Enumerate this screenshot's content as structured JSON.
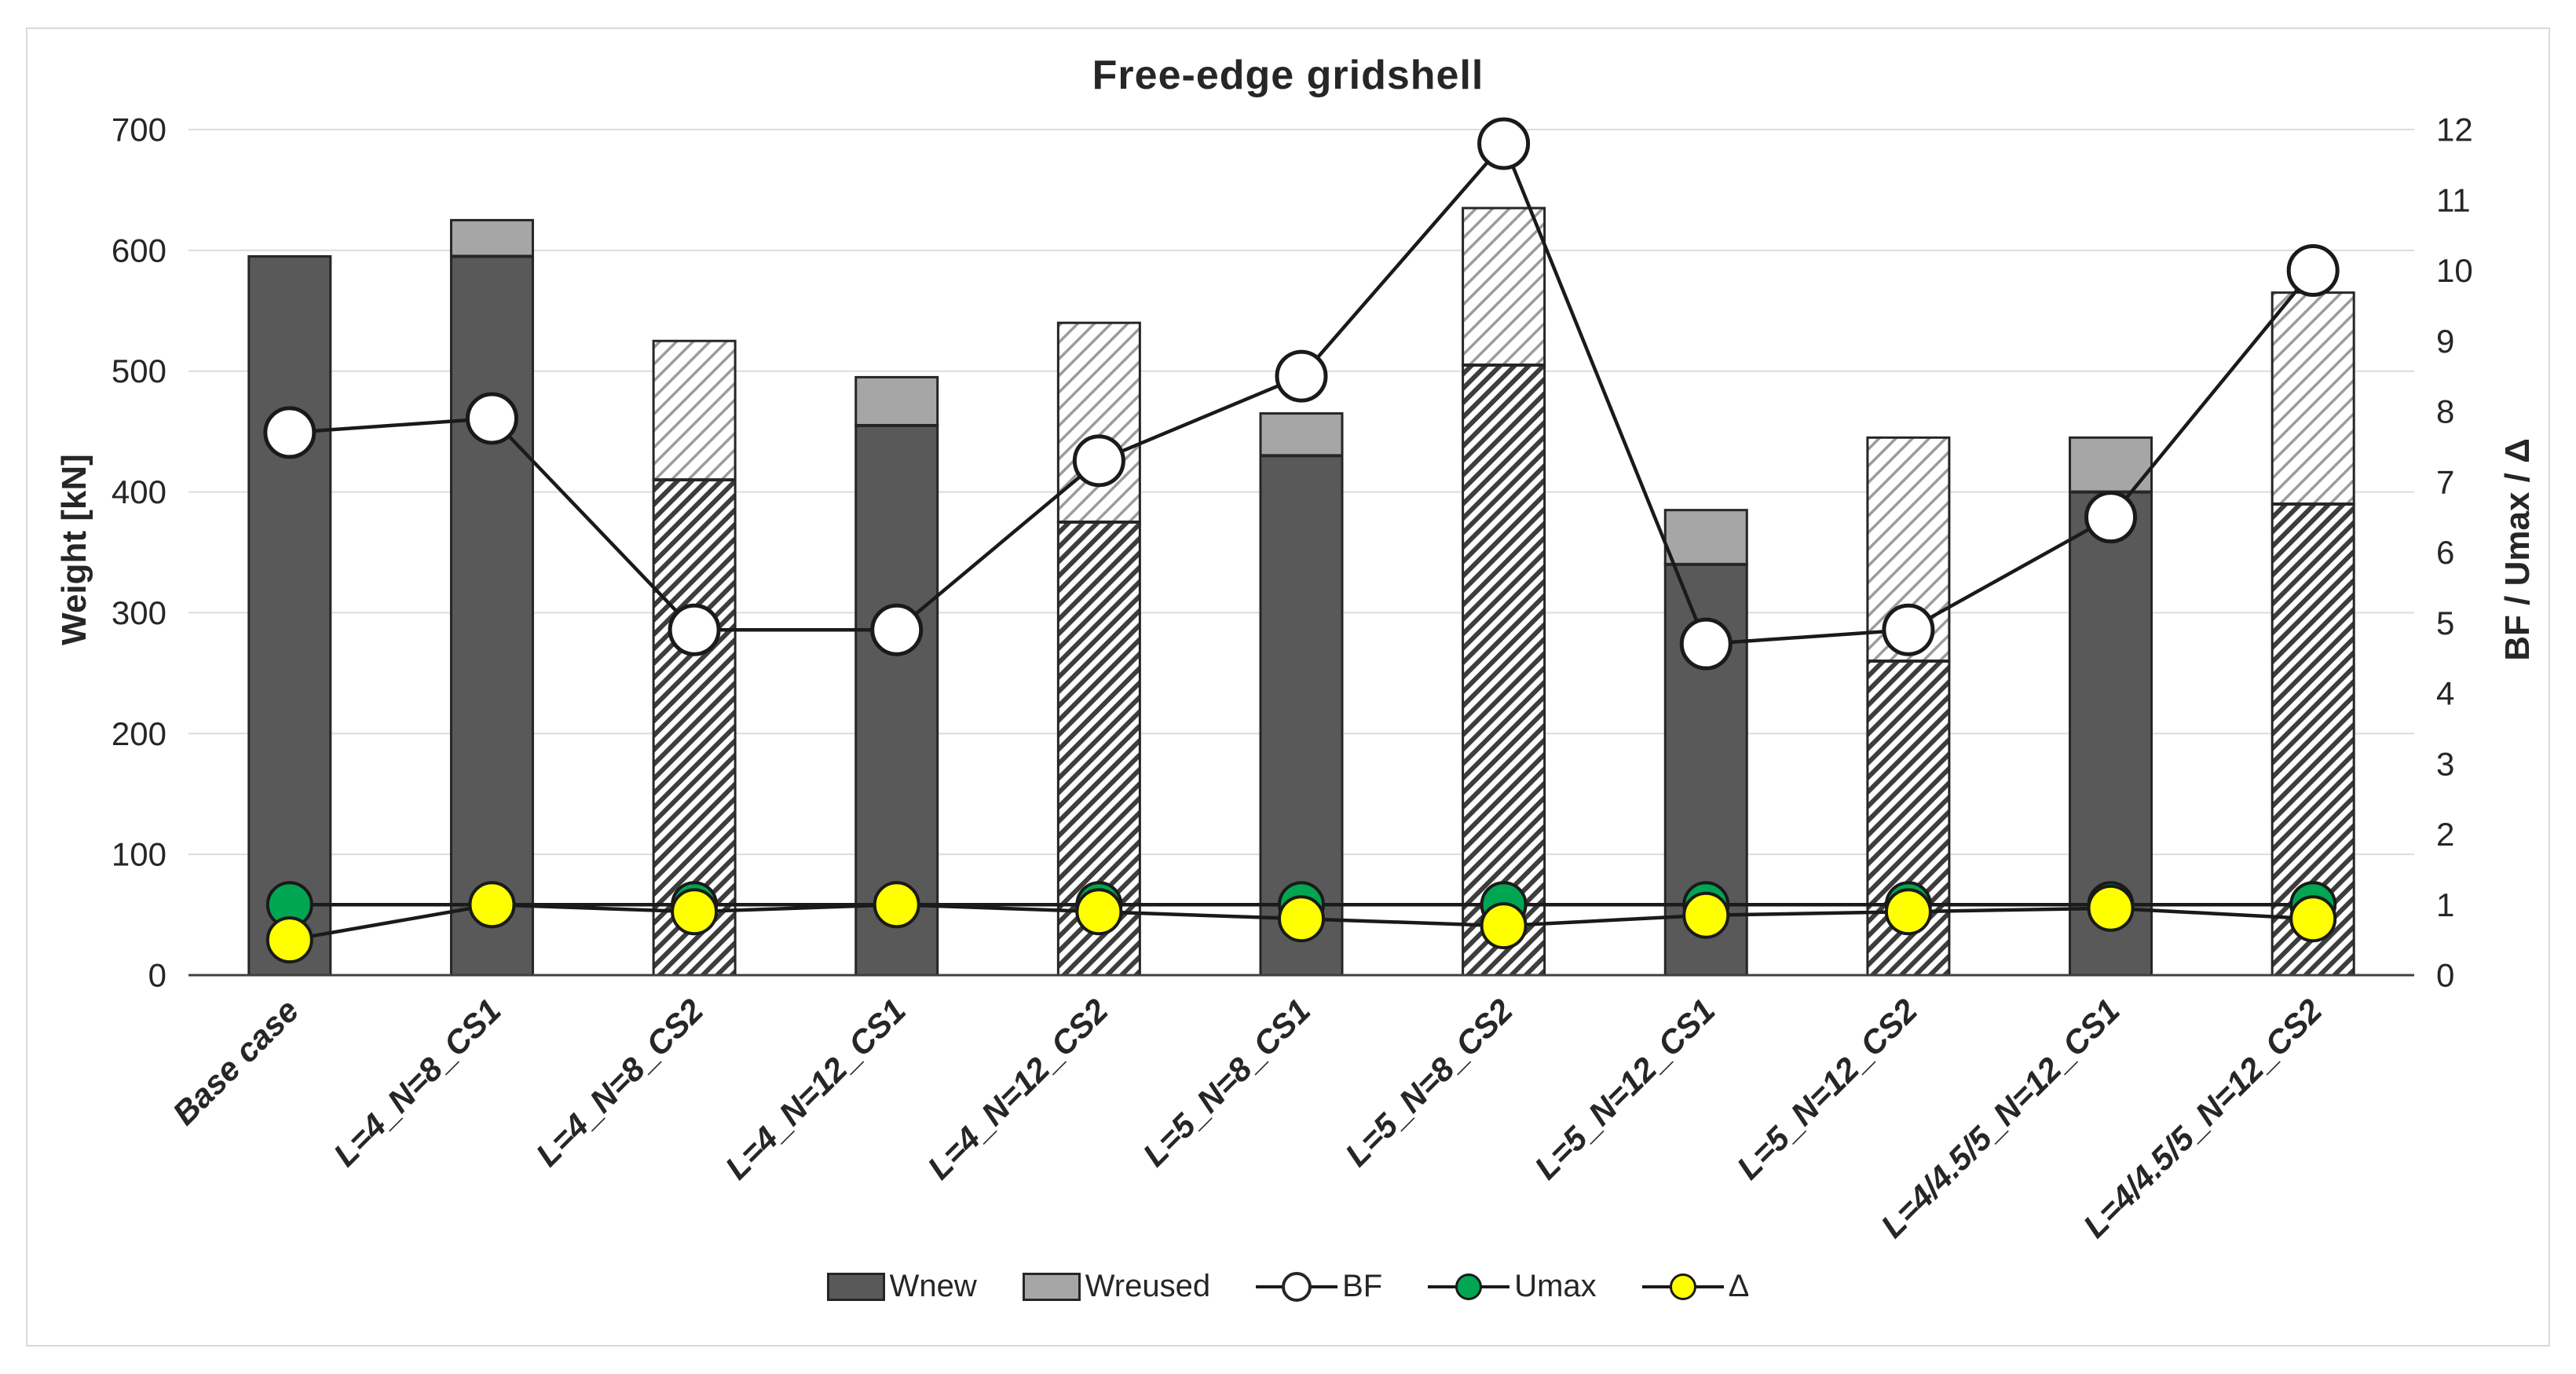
{
  "chart_data": {
    "type": "combo: stacked bars (left axis) + marker lines (right axis)",
    "title": "Free-edge gridshell",
    "categories": [
      "Base case",
      "L=4_N=8_CS1",
      "L=4_N=8_CS2",
      "L=4_N=12_CS1",
      "L=4_N=12_CS2",
      "L=5_N=8_CS1",
      "L=5_N=8_CS2",
      "L=5_N=12_CS1",
      "L=5_N=12_CS2",
      "L=4/4.5/5_N=12_CS1",
      "L=4/4.5/5_N=12_CS2"
    ],
    "bar_pattern": [
      "solid",
      "solid",
      "hatch",
      "solid",
      "hatch",
      "solid",
      "hatch",
      "solid",
      "hatch",
      "solid",
      "hatch"
    ],
    "series": [
      {
        "name": "Wnew",
        "type": "bar",
        "axis": "left",
        "values": [
          595,
          595,
          410,
          455,
          375,
          430,
          505,
          340,
          260,
          400,
          390
        ]
      },
      {
        "name": "Wreused",
        "type": "bar",
        "axis": "left",
        "values": [
          0,
          30,
          115,
          40,
          165,
          35,
          130,
          45,
          185,
          45,
          175
        ]
      },
      {
        "name": "BF",
        "type": "line",
        "axis": "right",
        "values": [
          7.7,
          7.9,
          4.9,
          4.9,
          7.3,
          8.5,
          11.8,
          4.7,
          4.9,
          6.5,
          10.0
        ]
      },
      {
        "name": "Umax",
        "type": "line",
        "axis": "right",
        "values": [
          1.0,
          1.0,
          1.0,
          1.0,
          1.0,
          1.0,
          1.0,
          1.0,
          1.0,
          1.0,
          1.0
        ]
      },
      {
        "name": "Δ",
        "type": "line",
        "axis": "right",
        "values": [
          0.5,
          1.0,
          0.9,
          1.0,
          0.9,
          0.8,
          0.7,
          0.85,
          0.9,
          0.95,
          0.8
        ]
      }
    ],
    "left_axis": {
      "label": "Weight [kN]",
      "min": 0,
      "max": 700,
      "step": 100
    },
    "right_axis": {
      "label": "BF / Umax / Δ",
      "min": 0,
      "max": 12,
      "step": 1
    },
    "legend": [
      "Wnew",
      "Wreused",
      "BF",
      "Umax",
      "Δ"
    ],
    "grid": "horizontal gridlines at each 100 kN, no vertical gridlines",
    "colors": {
      "wnew": "#595959",
      "wreused": "#a6a6a6",
      "hatch_dark_line": "#3d3d3d",
      "hatch_light_line": "#9c9c9c",
      "bar_border": "#262626",
      "series_line": "#1a1a1a",
      "bf_marker_fill": "#ffffff",
      "umax_marker_fill": "#00a651",
      "delta_marker_fill": "#ffff00",
      "gridline": "#dcdcdc",
      "axis_line": "#404040",
      "text": "#262626"
    }
  }
}
